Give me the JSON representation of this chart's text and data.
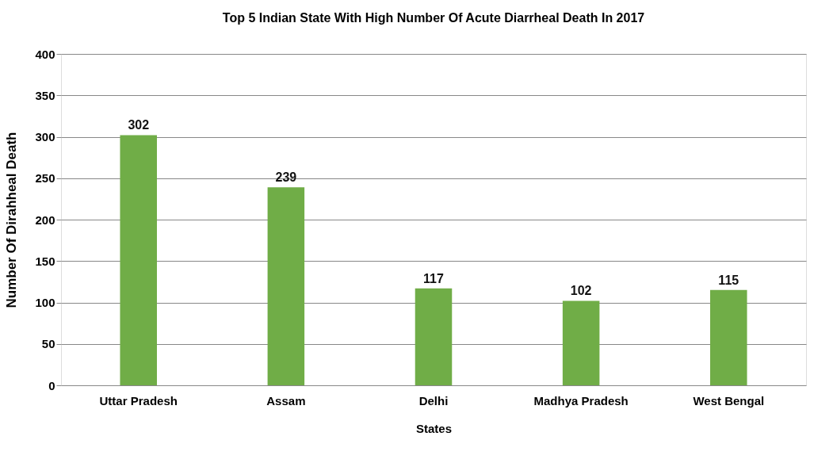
{
  "chart_data": {
    "type": "bar",
    "title": "Top 5 Indian State With High Number Of Acute Diarrheal Death In 2017",
    "xlabel": "States",
    "ylabel": "Number Of Dirahheal Death",
    "categories": [
      "Uttar Pradesh",
      "Assam",
      "Delhi",
      "Madhya Pradesh",
      "West Bengal"
    ],
    "series": [
      {
        "color": "#70ad47",
        "values": [
          302,
          239,
          117,
          102,
          115
        ]
      }
    ],
    "ylim": [
      0,
      400
    ],
    "yticks": [
      0,
      50,
      100,
      150,
      200,
      250,
      300,
      350,
      400
    ],
    "grid": "y",
    "data_labels": true,
    "legend": false
  }
}
